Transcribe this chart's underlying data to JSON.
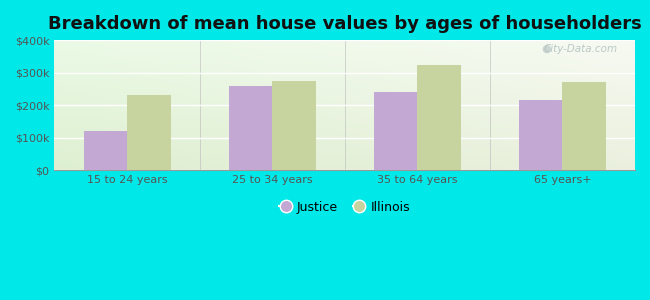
{
  "title": "Breakdown of mean house values by ages of householders",
  "categories": [
    "15 to 24 years",
    "25 to 34 years",
    "35 to 64 years",
    "65 years+"
  ],
  "justice_values": [
    120000,
    258000,
    240000,
    215000
  ],
  "illinois_values": [
    232000,
    275000,
    325000,
    272000
  ],
  "justice_color": "#c4a8d4",
  "illinois_color": "#c8d4a0",
  "background_color": "#00e8e8",
  "ylim": [
    0,
    400000
  ],
  "yticks": [
    0,
    100000,
    200000,
    300000,
    400000
  ],
  "ytick_labels": [
    "$0",
    "$100k",
    "$200k",
    "$300k",
    "$400k"
  ],
  "title_fontsize": 13,
  "tick_fontsize": 8,
  "legend_labels": [
    "Justice",
    "Illinois"
  ],
  "bar_width": 0.3,
  "watermark": "City-Data.com"
}
